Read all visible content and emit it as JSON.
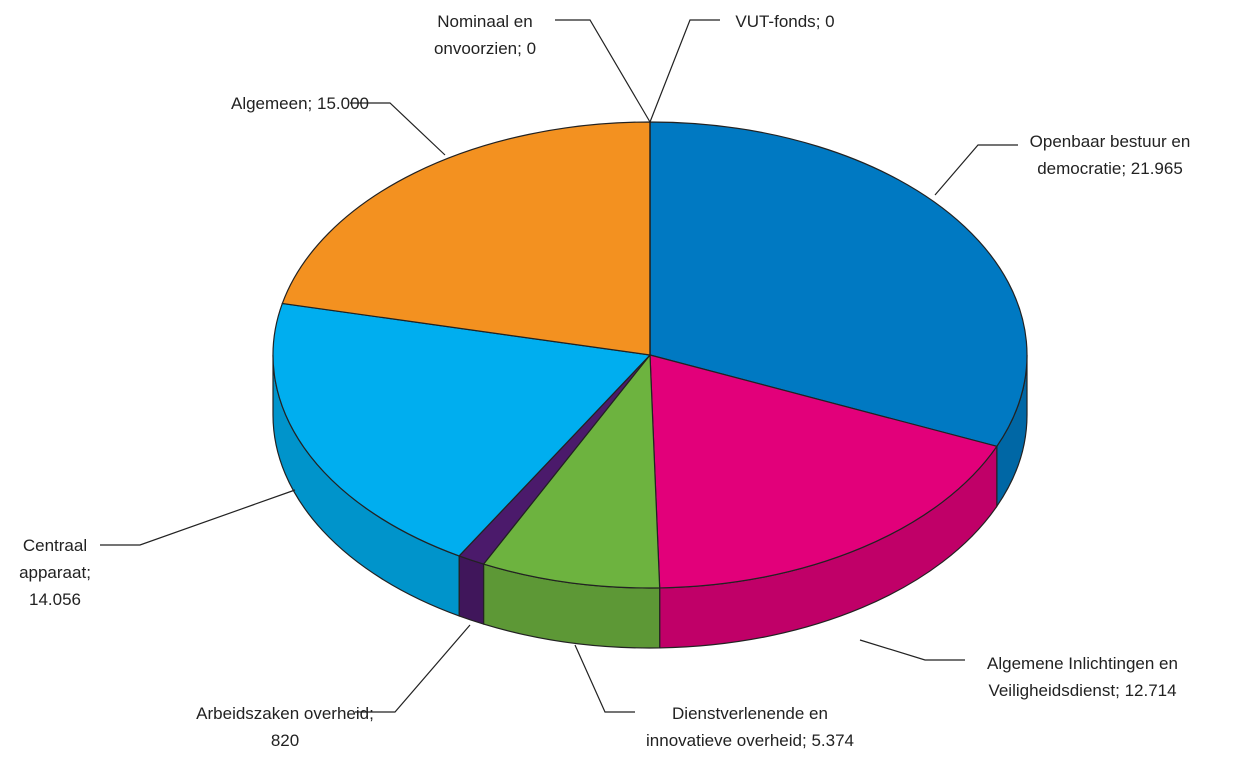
{
  "chart_data": {
    "type": "pie3d",
    "categories": [
      "Openbaar bestuur en democratie",
      "Algemene Inlichtingen en Veiligheidsdienst",
      "Dienstverlenende en innovatieve overheid",
      "Arbeidszaken overheid",
      "Centraal apparaat",
      "Algemeen",
      "Nominaal en onvoorzien",
      "VUT-fonds"
    ],
    "values": [
      21965,
      12714,
      5374,
      820,
      14056,
      15000,
      0,
      0
    ],
    "value_labels": [
      "21.965",
      "12.714",
      "5.374",
      "820",
      "14.056",
      "15.000",
      "0",
      "0"
    ],
    "separator": ";",
    "colors": [
      "#0079c2",
      "#e2007a",
      "#6db33f",
      "#4b1a6b",
      "#00aeef",
      "#f39120",
      "#999999",
      "#999999"
    ]
  }
}
